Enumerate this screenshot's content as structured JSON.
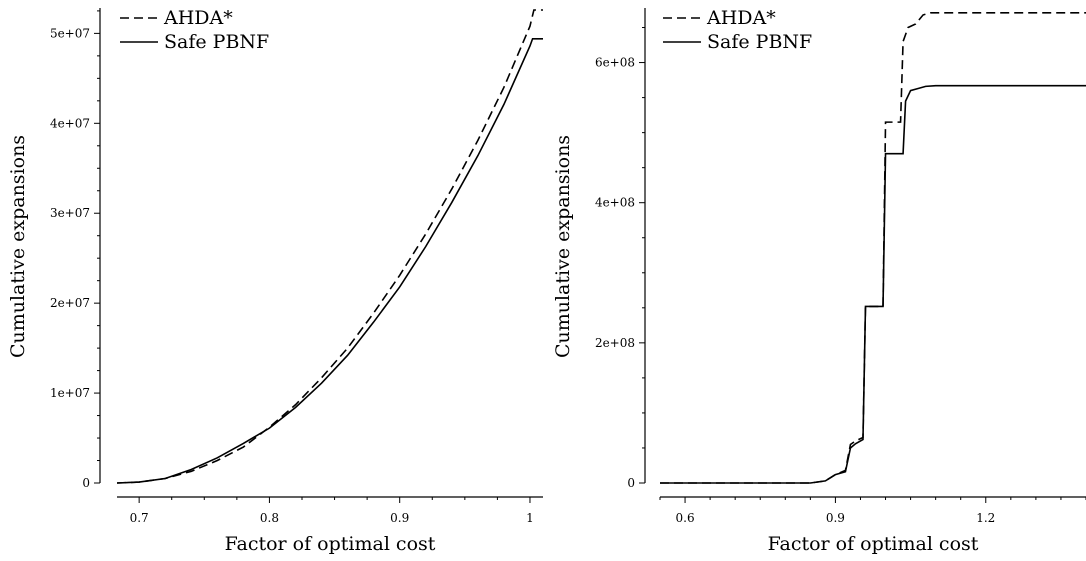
{
  "chart_data": [
    {
      "type": "line",
      "xlabel": "Factor of optimal cost",
      "ylabel": "Cumulative expansions",
      "xlim": [
        0.683,
        1.01
      ],
      "ylim": [
        0,
        52600000
      ],
      "xticks": [
        0.7,
        0.8,
        0.9,
        1.0
      ],
      "xtick_labels": [
        "0.7",
        "0.8",
        "0.9",
        "1"
      ],
      "xminor_step": 0.025,
      "yticks": [
        0,
        10000000,
        20000000,
        30000000,
        40000000,
        50000000
      ],
      "ytick_labels": [
        "0",
        "1e+07",
        "2e+07",
        "3e+07",
        "4e+07",
        "5e+07"
      ],
      "legend": "top-left",
      "grid": false,
      "series": [
        {
          "name": "AHDA*",
          "style": "dashed",
          "x": [
            0.683,
            0.7,
            0.72,
            0.74,
            0.76,
            0.78,
            0.8,
            0.82,
            0.84,
            0.86,
            0.88,
            0.9,
            0.92,
            0.94,
            0.96,
            0.98,
            1.0,
            1.003,
            1.01
          ],
          "y": [
            0,
            100000,
            500000,
            1300000,
            2500000,
            4000000,
            6200000,
            8700000,
            11700000,
            15000000,
            18900000,
            23100000,
            27700000,
            32700000,
            38100000,
            44000000,
            50800000,
            52600000,
            52600000
          ]
        },
        {
          "name": "Safe PBNF",
          "style": "solid",
          "x": [
            0.683,
            0.7,
            0.72,
            0.74,
            0.76,
            0.78,
            0.8,
            0.82,
            0.84,
            0.86,
            0.88,
            0.9,
            0.92,
            0.94,
            0.96,
            0.98,
            1.0,
            1.002,
            1.01
          ],
          "y": [
            0,
            100000,
            500000,
            1500000,
            2800000,
            4400000,
            6100000,
            8400000,
            11100000,
            14200000,
            17900000,
            21800000,
            26300000,
            31200000,
            36400000,
            42100000,
            48600000,
            49400000,
            49400000
          ]
        }
      ]
    },
    {
      "type": "line",
      "xlabel": "Factor of optimal cost",
      "ylabel": "Cumulative expansions",
      "xlim": [
        0.55,
        1.4
      ],
      "ylim": [
        0,
        675000000
      ],
      "xticks": [
        0.6,
        0.9,
        1.2
      ],
      "xtick_labels": [
        "0.6",
        "0.9",
        "1.2"
      ],
      "xminor_step": 0.05,
      "yticks": [
        0,
        200000000,
        400000000,
        600000000
      ],
      "ytick_labels": [
        "0",
        "2e+08",
        "4e+08",
        "6e+08"
      ],
      "legend": "top-left",
      "grid": false,
      "series": [
        {
          "name": "AHDA*",
          "style": "dashed",
          "x": [
            0.55,
            0.85,
            0.88,
            0.9,
            0.92,
            0.93,
            0.94,
            0.955,
            0.96,
            0.98,
            0.995,
            1.0,
            1.03,
            1.035,
            1.045,
            1.06,
            1.075,
            1.09,
            1.4
          ],
          "y": [
            0,
            0,
            3000000,
            12000000,
            18000000,
            55000000,
            60000000,
            65000000,
            252000000,
            252000000,
            252000000,
            515000000,
            515000000,
            630000000,
            650000000,
            655000000,
            668000000,
            671000000,
            671000000
          ]
        },
        {
          "name": "Safe PBNF",
          "style": "solid",
          "x": [
            0.55,
            0.85,
            0.88,
            0.9,
            0.92,
            0.93,
            0.94,
            0.955,
            0.96,
            0.98,
            0.995,
            1.0,
            1.035,
            1.04,
            1.05,
            1.065,
            1.08,
            1.1,
            1.4
          ],
          "y": [
            0,
            0,
            3000000,
            12000000,
            16000000,
            50000000,
            56000000,
            62000000,
            252000000,
            252000000,
            252000000,
            470000000,
            470000000,
            545000000,
            560000000,
            563000000,
            566000000,
            567000000,
            567000000
          ]
        }
      ]
    }
  ]
}
